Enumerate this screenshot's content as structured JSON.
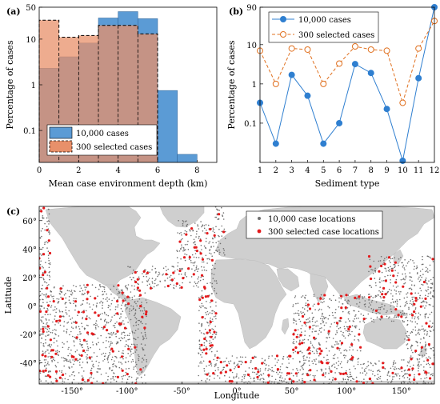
{
  "chart_data": [
    {
      "panel_label": "(a)",
      "type": "bar",
      "title": "",
      "xlabel": "Mean case environment depth (km)",
      "ylabel": "Percentage of cases",
      "yscale": "log",
      "xlim": [
        0,
        9
      ],
      "ylim": [
        0.02,
        50
      ],
      "x_ticks": [
        "0",
        "2",
        "4",
        "6",
        "8"
      ],
      "y_ticks": [
        "0.1",
        "1",
        "10",
        "50"
      ],
      "bin_edges": [
        0,
        1,
        2,
        3,
        4,
        5,
        6,
        7,
        8
      ],
      "legend_position": "bottom-left",
      "series": [
        {
          "name": "10,000 cases",
          "color": "#5b9bd5",
          "values": [
            2.3,
            4.1,
            8.2,
            29,
            40,
            28,
            0.75,
            0.03
          ]
        },
        {
          "name": "300 selected cases",
          "color": "#e8906a",
          "style": "dashed-outline",
          "values": [
            26,
            11,
            12,
            20,
            20,
            13,
            0,
            0
          ]
        }
      ]
    },
    {
      "panel_label": "(b)",
      "type": "line",
      "title": "",
      "xlabel": "Sediment type",
      "ylabel": "Percentage of cases",
      "yscale": "log",
      "ylim": [
        0.01,
        90
      ],
      "y_ticks": [
        "0.1",
        "1",
        "10",
        "90"
      ],
      "categories": [
        "1",
        "2",
        "3",
        "4",
        "5",
        "6",
        "7",
        "8",
        "9",
        "10",
        "11",
        "12"
      ],
      "legend_position": "top-left",
      "series": [
        {
          "name": "10,000 cases",
          "color": "#2f7fd0",
          "marker": "filled-circle",
          "line": "solid",
          "values": [
            0.33,
            0.03,
            1.7,
            0.5,
            0.03,
            0.1,
            3.2,
            1.9,
            0.23,
            0.011,
            1.4,
            90
          ]
        },
        {
          "name": "300 selected cases",
          "color": "#e0701f",
          "marker": "open-circle",
          "line": "dashed",
          "values": [
            7,
            1,
            8,
            7.5,
            1,
            3.3,
            9,
            7.5,
            7,
            0.33,
            8,
            40
          ]
        }
      ]
    },
    {
      "panel_label": "(c)",
      "type": "scatter",
      "title": "",
      "xlabel": "Longitude",
      "ylabel": "Latitude",
      "xlim": [
        -180,
        180
      ],
      "ylim": [
        -55,
        70
      ],
      "x_ticks": [
        "-150°",
        "-100°",
        "-50°",
        "0°",
        "50°",
        "100°",
        "150°"
      ],
      "y_ticks": [
        "60°",
        "40°",
        "20°",
        "0°",
        "-20°",
        "-40°"
      ],
      "basemap": "world land masses (grey)",
      "legend_position": "top-right",
      "series": [
        {
          "name": "10,000 case locations",
          "color": "#707070",
          "marker": "small-dot",
          "count": 10000
        },
        {
          "name": "300 selected case locations",
          "color": "#e31a1c",
          "marker": "dot",
          "count": 300
        }
      ]
    }
  ]
}
